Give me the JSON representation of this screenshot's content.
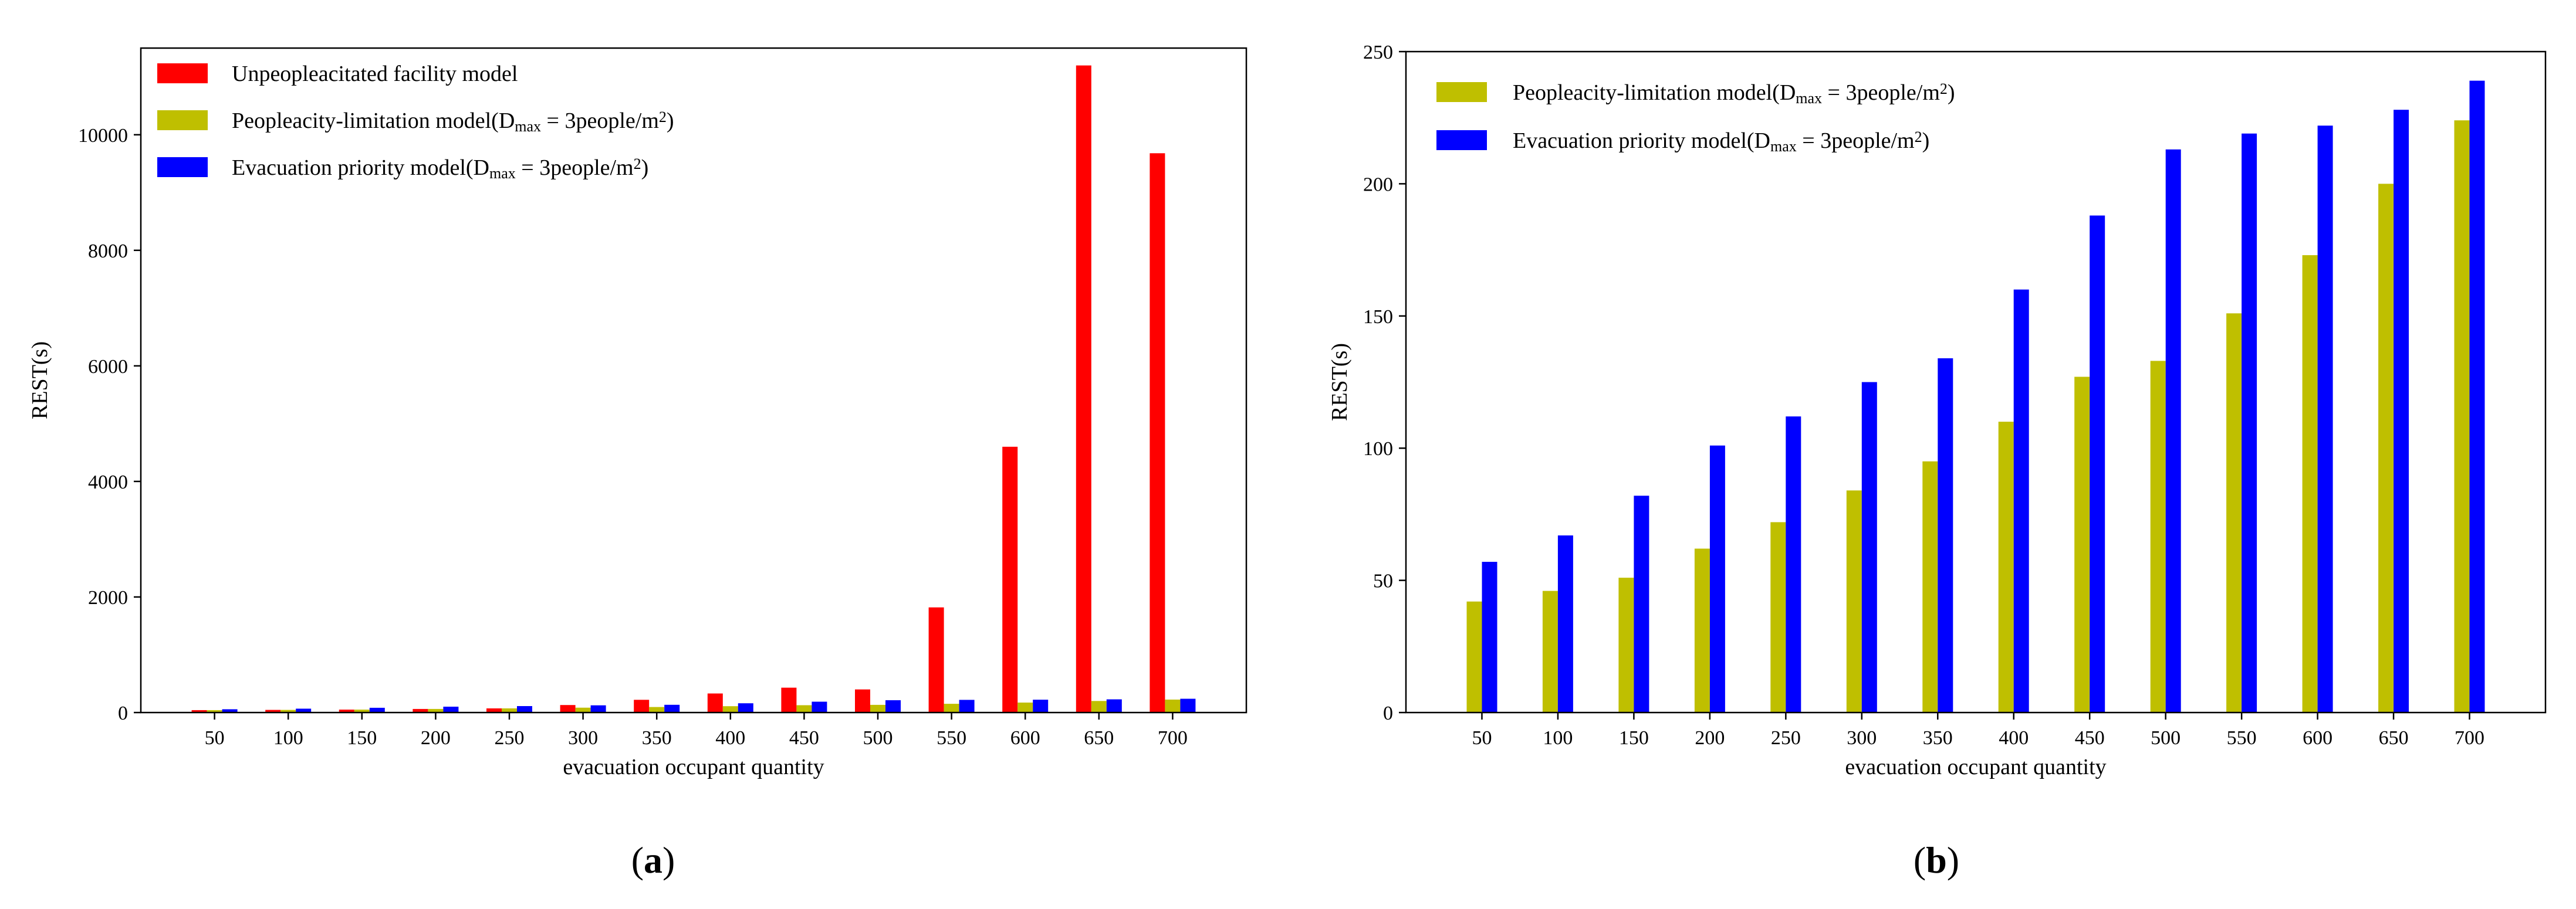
{
  "chart_data": [
    {
      "type": "bar",
      "panel_label": {
        "open": "(",
        "letter": "a",
        "close": ")"
      },
      "categories": [
        "50",
        "100",
        "150",
        "200",
        "250",
        "300",
        "350",
        "400",
        "450",
        "500",
        "550",
        "600",
        "650",
        "700"
      ],
      "xlabel": "evacuation occupant quantity",
      "ylabel": "REST(s)",
      "ylim": [
        0,
        11500
      ],
      "yticks": [
        0,
        2000,
        4000,
        6000,
        8000,
        10000
      ],
      "grid": false,
      "legend_position": "top-left",
      "series": [
        {
          "name": "Unpeopleacitated facility model",
          "color": "#ff0000",
          "values": [
            42,
            46,
            51,
            62,
            72,
            130,
            220,
            330,
            430,
            400,
            1820,
            4600,
            11200,
            9680
          ]
        },
        {
          "name": "Peopleacity-limitation model(Dmax = 3people/m2)",
          "color": "#bfbf00",
          "values": [
            42,
            46,
            51,
            62,
            72,
            84,
            95,
            110,
            127,
            133,
            151,
            173,
            200,
            224
          ]
        },
        {
          "name": "Evacuation priority model(Dmax = 3people/m2)",
          "color": "#0000ff",
          "values": [
            57,
            67,
            82,
            101,
            112,
            125,
            134,
            160,
            188,
            213,
            219,
            222,
            228,
            239
          ]
        }
      ],
      "legend": [
        {
          "main": "Unpeopleacitated facility model",
          "sub": "",
          "after": "",
          "sup": "",
          "end": ""
        },
        {
          "main": "Peopleacity-limitation model(D",
          "sub": "max",
          "after": " = 3people/m",
          "sup": "2",
          "end": ")"
        },
        {
          "main": "Evacuation priority model(D",
          "sub": "max",
          "after": " = 3people/m",
          "sup": "2",
          "end": ")"
        }
      ]
    },
    {
      "type": "bar",
      "panel_label": {
        "open": "(",
        "letter": "b",
        "close": ")"
      },
      "categories": [
        "50",
        "100",
        "150",
        "200",
        "250",
        "300",
        "350",
        "400",
        "450",
        "500",
        "550",
        "600",
        "650",
        "700"
      ],
      "xlabel": "evacuation occupant quantity",
      "ylabel": "REST(s)",
      "ylim": [
        0,
        250
      ],
      "yticks": [
        0,
        50,
        100,
        150,
        200,
        250
      ],
      "grid": false,
      "legend_position": "top-left",
      "series": [
        {
          "name": "Peopleacity-limitation model(Dmax = 3people/m2)",
          "color": "#bfbf00",
          "values": [
            42,
            46,
            51,
            62,
            72,
            84,
            95,
            110,
            127,
            133,
            151,
            173,
            200,
            224
          ]
        },
        {
          "name": "Evacuation priority model(Dmax = 3people/m2)",
          "color": "#0000ff",
          "values": [
            57,
            67,
            82,
            101,
            112,
            125,
            134,
            160,
            188,
            213,
            219,
            222,
            228,
            239
          ]
        }
      ],
      "legend": [
        {
          "main": "Peopleacity-limitation model(D",
          "sub": "max",
          "after": " = 3people/m",
          "sup": "2",
          "end": ")"
        },
        {
          "main": "Evacuation priority model(D",
          "sub": "max",
          "after": " = 3people/m",
          "sup": "2",
          "end": ")"
        }
      ]
    }
  ]
}
